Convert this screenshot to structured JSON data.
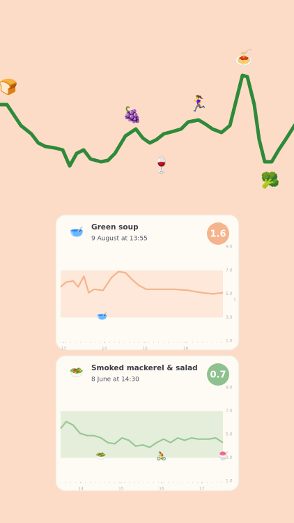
{
  "hero_icons": [
    "🍞",
    "🍇",
    "🏃‍♀️",
    "🍝",
    "🍷",
    "🥦"
  ],
  "cards": [
    {
      "icon": "🥣",
      "title": "Green soup",
      "date": "9 August at 13:55",
      "score": "1.6",
      "chart": {
        "type": "line",
        "color": "#f3b48c",
        "band_color": "#fde8da",
        "range": [
          3,
          7
        ],
        "side_label": "1",
        "icons": [
          "🥣"
        ],
        "icon_x": [
          13.95
        ],
        "x": [
          12.93,
          13.07,
          13.24,
          13.36,
          13.5,
          13.62,
          13.75,
          13.97,
          14.18,
          14.35,
          14.52,
          14.69,
          14.86,
          15.03,
          15.38,
          15.72,
          16.06,
          16.4,
          16.66,
          16.91
        ],
        "values": [
          5.6,
          6.0,
          6.1,
          5.6,
          6.5,
          5.1,
          5.4,
          5.3,
          6.4,
          6.9,
          6.8,
          6.2,
          5.7,
          5.4,
          5.4,
          5.4,
          5.3,
          5.1,
          5.0,
          5.1
        ],
        "xlim": [
          12.93,
          16.91
        ],
        "xticks": [
          13,
          14,
          15,
          16
        ],
        "ylim": [
          1,
          9
        ],
        "yticks": [
          {
            "value": 1,
            "label": "1.0"
          },
          {
            "value": 3,
            "label": "3.0"
          },
          {
            "value": 5,
            "label": "5.0"
          },
          {
            "value": 7,
            "label": "7.0"
          },
          {
            "value": 9,
            "label": "9.0"
          }
        ]
      }
    },
    {
      "icon": "🥗",
      "title": "Smoked mackerel & salad",
      "date": "8 June at 14:30",
      "score": "0.7",
      "chart": {
        "type": "line",
        "color": "#96c896",
        "band_color": "#e4eedb",
        "range": [
          3,
          7
        ],
        "icons": [
          "🥗",
          "🚴",
          "🍧"
        ],
        "icon_x": [
          14.5,
          16.0,
          17.52
        ],
        "x": [
          13.5,
          13.64,
          13.81,
          13.98,
          14.16,
          14.33,
          14.5,
          14.67,
          14.84,
          15.02,
          15.19,
          15.36,
          15.53,
          15.71,
          15.88,
          16.05,
          16.22,
          16.4,
          16.57,
          16.74,
          16.91,
          17.17,
          17.34,
          17.52
        ],
        "values": [
          5.5,
          6.1,
          5.8,
          5.1,
          4.9,
          4.9,
          4.7,
          4.3,
          4.2,
          4.7,
          4.5,
          4.0,
          4.1,
          3.9,
          4.3,
          4.6,
          4.3,
          4.7,
          4.5,
          4.7,
          4.6,
          4.6,
          4.7,
          4.3
        ],
        "xlim": [
          13.5,
          17.52
        ],
        "xticks": [
          14,
          15,
          16,
          17
        ],
        "ylim": [
          1,
          9
        ],
        "yticks": [
          {
            "value": 1,
            "label": "1.0"
          },
          {
            "value": 3,
            "label": "3.0"
          },
          {
            "value": 5,
            "label": "5.0"
          },
          {
            "value": 7,
            "label": "7.0"
          },
          {
            "value": 9,
            "label": "9.0"
          }
        ]
      }
    }
  ]
}
